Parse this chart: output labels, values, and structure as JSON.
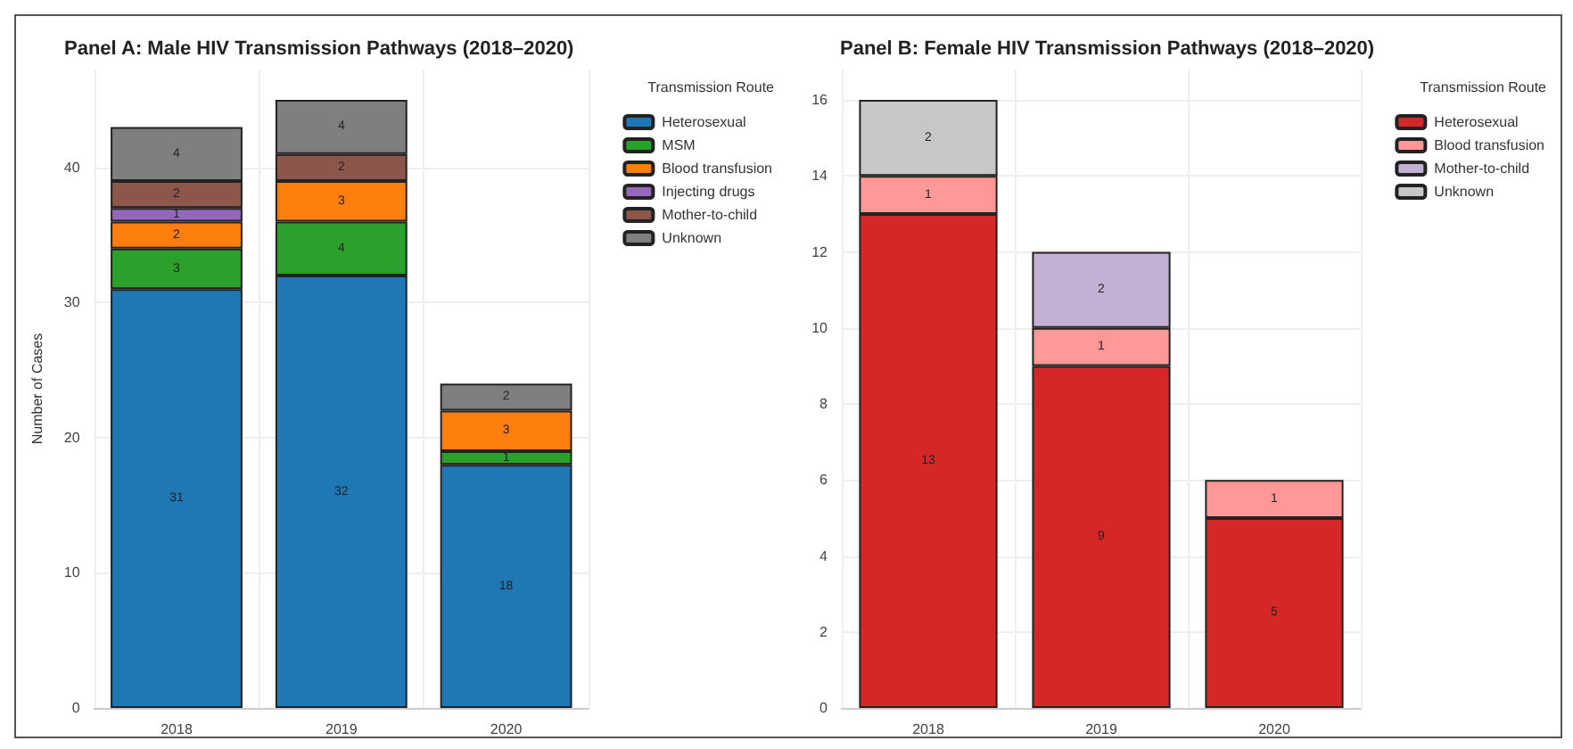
{
  "chart_data": [
    {
      "type": "bar",
      "title": "Panel A: Male HIV Transmission Pathways (2018–2020)",
      "ylabel": "Number of Cases",
      "legend_title": "Transmission Route",
      "categories": [
        "2018",
        "2019",
        "2020"
      ],
      "stacked": true,
      "data_labels": true,
      "grid": true,
      "legend": "top right",
      "ylim": [
        0,
        47.25
      ],
      "yticks": [
        0,
        10,
        20,
        30,
        40
      ],
      "series": [
        {
          "name": "Heterosexual",
          "color": "#1f77b4",
          "values": [
            31,
            32,
            18
          ]
        },
        {
          "name": "MSM",
          "color": "#2ca02c",
          "values": [
            3,
            4,
            1
          ]
        },
        {
          "name": "Blood transfusion",
          "color": "#ff7f0e",
          "values": [
            2,
            3,
            3
          ]
        },
        {
          "name": "Injecting drugs",
          "color": "#9467bd",
          "values": [
            1,
            null,
            null
          ]
        },
        {
          "name": "Mother-to-child",
          "color": "#8c564b",
          "values": [
            2,
            2,
            null
          ]
        },
        {
          "name": "Unknown",
          "color": "#7f7f7f",
          "values": [
            4,
            4,
            2
          ]
        }
      ]
    },
    {
      "type": "bar",
      "title": "Panel B: Female HIV Transmission Pathways (2018–2020)",
      "legend_title": "Transmission Route",
      "categories": [
        "2018",
        "2019",
        "2020"
      ],
      "stacked": true,
      "data_labels": true,
      "grid": true,
      "legend": "top right",
      "ylim": [
        0,
        16.8
      ],
      "yticks": [
        0,
        2,
        4,
        6,
        8,
        10,
        12,
        14,
        16
      ],
      "series": [
        {
          "name": "Heterosexual",
          "color": "#d62728",
          "values": [
            13,
            9,
            5
          ]
        },
        {
          "name": "Blood transfusion",
          "color": "#ff9896",
          "values": [
            1,
            1,
            1
          ]
        },
        {
          "name": "Mother-to-child",
          "color": "#c5b0d5",
          "values": [
            null,
            2,
            null
          ]
        },
        {
          "name": "Unknown",
          "color": "#c7c7c7",
          "values": [
            2,
            null,
            null
          ]
        }
      ]
    }
  ]
}
